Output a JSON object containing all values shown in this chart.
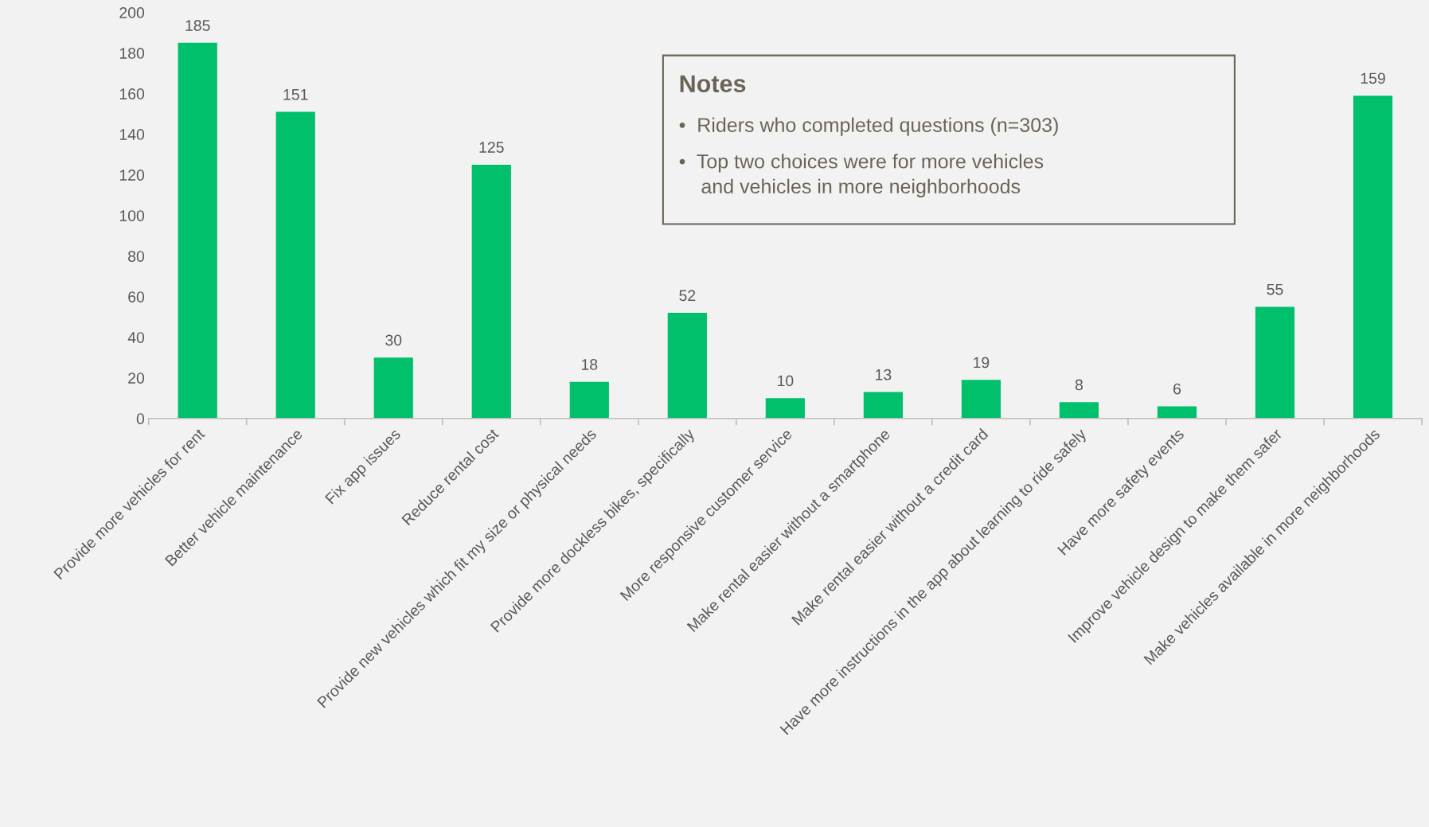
{
  "chart_data": {
    "type": "bar",
    "categories": [
      "Provide more vehicles for rent",
      "Better vehicle maintenance",
      "Fix app issues",
      "Reduce rental cost",
      "Provide new vehicles which fit my size or physical needs",
      "Provide more dockless bikes, specifically",
      "More responsive customer service",
      "Make rental easier without a smartphone",
      "Make rental easier without a credit card",
      "Have more instructions in the app about learning to ride safely",
      "Have more safety events",
      "Improve vehicle design to make them safer",
      "Make vehicles available in more neighborhoods"
    ],
    "values": [
      185,
      151,
      30,
      125,
      18,
      52,
      10,
      13,
      19,
      8,
      6,
      55,
      159
    ],
    "color": "#00c06b",
    "ylim": [
      0,
      200
    ],
    "yticks": [
      0,
      20,
      40,
      60,
      80,
      100,
      120,
      140,
      160,
      180,
      200
    ],
    "data_labels": true,
    "grid": false,
    "legend": false,
    "annotations": [
      "Notes",
      "•  Riders who completed questions (n=303)",
      "•  Top two choices were for more vehicles\n    and vehicles in more neighborhoods"
    ]
  }
}
